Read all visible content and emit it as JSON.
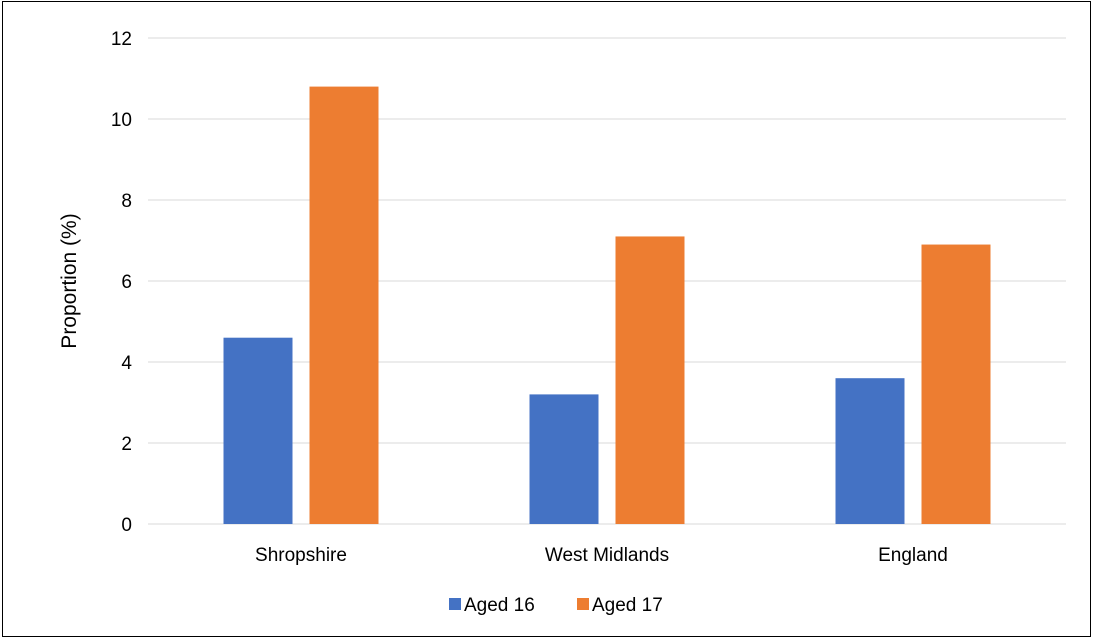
{
  "chart_data": {
    "type": "bar",
    "categories": [
      "Shropshire",
      "West Midlands",
      "England"
    ],
    "series": [
      {
        "name": "Aged 16",
        "values": [
          4.6,
          3.2,
          3.6
        ],
        "color": "#4472C4"
      },
      {
        "name": "Aged 17",
        "values": [
          10.8,
          7.1,
          6.9
        ],
        "color": "#ED7D31"
      }
    ],
    "ylabel": "Proportion (%)",
    "ylim": [
      0,
      12
    ],
    "yticks": [
      0,
      2,
      4,
      6,
      8,
      10,
      12
    ],
    "grid": true,
    "legend_position": "bottom"
  }
}
